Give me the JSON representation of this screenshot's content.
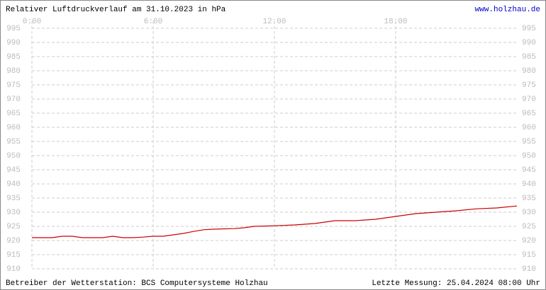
{
  "chart_data": {
    "type": "line",
    "title": "Relativer Luftdruckverlauf am 31.10.2023 in hPa",
    "source_link": "www.holzhau.de",
    "operator": "Betreiber der Wetterstation: BCS Computersysteme Holzhau",
    "last_measurement": "Letzte Messung: 25.04.2024 08:00 Uhr",
    "x": [
      0,
      1,
      1.5,
      2,
      2.5,
      3,
      3.5,
      4,
      4.5,
      5,
      5.5,
      6,
      6.5,
      7,
      7.5,
      8,
      8.5,
      9,
      10,
      10.5,
      11,
      12,
      13,
      14,
      14.5,
      15,
      16,
      17,
      18,
      19,
      20,
      21,
      22,
      23,
      24
    ],
    "series": [
      {
        "name": "Luftdruck",
        "color": "#cc0000",
        "values": [
          921,
          921,
          921.5,
          921.5,
          921,
          921,
          921,
          921.5,
          921,
          921,
          921.2,
          921.5,
          921.5,
          922,
          922.5,
          923.2,
          923.8,
          924,
          924.2,
          924.5,
          925,
          925.2,
          925.5,
          926,
          926.5,
          927,
          927,
          927.5,
          928.5,
          929.5,
          930,
          930.5,
          931.2,
          931.5,
          932.2
        ]
      }
    ],
    "xlim": [
      0,
      24
    ],
    "xticks": [
      {
        "value": 0,
        "label": "0:00"
      },
      {
        "value": 6,
        "label": "6:00"
      },
      {
        "value": 12,
        "label": "12:00"
      },
      {
        "value": 18,
        "label": "18:00"
      }
    ],
    "ylim": [
      910,
      995
    ],
    "yticks": [
      910,
      915,
      920,
      925,
      930,
      935,
      940,
      945,
      950,
      955,
      960,
      965,
      970,
      975,
      980,
      985,
      990,
      995
    ],
    "grid": true
  }
}
